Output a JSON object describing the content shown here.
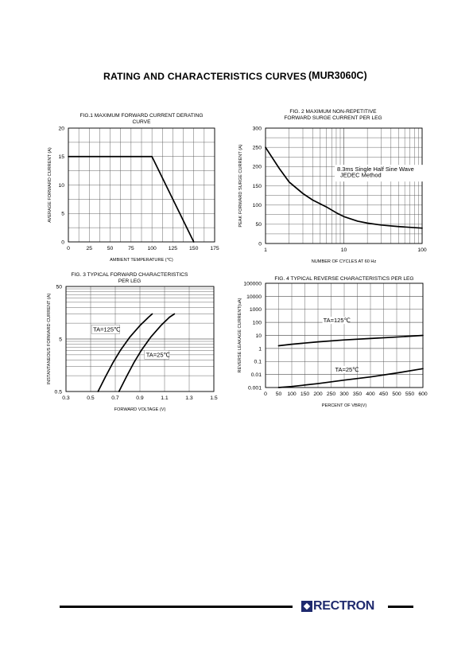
{
  "page": {
    "title": "RATING AND CHARACTERISTICS CURVES",
    "part_number": "(MUR3060C)",
    "logo_text": "RECTRON",
    "logo_icon": "rectron-logo-icon"
  },
  "chart_data": [
    {
      "id": "fig1",
      "type": "line",
      "title": "FIG.1 MAXIMUM FORWARD CURRENT DERATING CURVE",
      "title_lines": [
        "FIG.1 MAXIMUM FORWARD CURRENT DERATING",
        "CURVE"
      ],
      "xlabel": "AMBIENT TEMPERATURE (℃)",
      "ylabel": "AVERAGE FORWARD CURRENT (A)",
      "xlim": [
        0,
        175
      ],
      "ylim": [
        0,
        20
      ],
      "xticks": [
        0,
        25,
        50,
        75,
        100,
        125,
        150,
        175
      ],
      "yticks": [
        0,
        5,
        10,
        15,
        20
      ],
      "xtick_labels": [
        "0",
        "25",
        "50",
        "75",
        "100",
        "125",
        "150",
        "175"
      ],
      "ytick_labels": [
        "0",
        "5",
        "10",
        "15",
        "20"
      ],
      "grid": true,
      "series": [
        {
          "x": [
            0,
            100,
            150
          ],
          "y": [
            15,
            15,
            0
          ]
        }
      ]
    },
    {
      "id": "fig2",
      "type": "line",
      "title": "FIG. 2 MAXIMUM NON-REPETITIVE FORWARD SURGE CURRENT PER LEG",
      "title_lines": [
        "FIG. 2 MAXIMUM NON-REPETITIVE",
        "FORWARD SURGE CURRENT PER LEG"
      ],
      "xlabel": "NUMBER OF CYCLES AT 60 Hz",
      "ylabel": "PEAK FORWARD SURGE CURRENT (A)",
      "xscale": "log",
      "xlim": [
        1,
        100
      ],
      "ylim": [
        0,
        300
      ],
      "xticks": [
        1,
        10,
        100
      ],
      "yticks": [
        0,
        50,
        100,
        150,
        200,
        250,
        300
      ],
      "xtick_labels": [
        "1",
        "10",
        "100"
      ],
      "ytick_labels": [
        "0",
        "50",
        "100",
        "150",
        "200",
        "250",
        "300"
      ],
      "grid": true,
      "annotations": [
        {
          "text": "8.3ms Single Half Sine Wave",
          "x": 8.2,
          "y": 188
        },
        {
          "text": "JEDEC Method",
          "x": 9.0,
          "y": 173
        }
      ],
      "series": [
        {
          "x": [
            1,
            1.5,
            2,
            3,
            4,
            6,
            8,
            10,
            15,
            20,
            30,
            50,
            70,
            100
          ],
          "y": [
            250,
            195,
            160,
            130,
            113,
            95,
            80,
            70,
            58,
            53,
            48,
            44,
            42,
            40
          ]
        }
      ]
    },
    {
      "id": "fig3",
      "type": "line",
      "title": "FIG. 3 TYPICAL FORWARD CHARACTERISTICS PER LEG",
      "title_lines": [
        "FIG. 3 TYPICAL FORWARD CHARACTERISTICS",
        "PER LEG"
      ],
      "xlabel": "FORWARD VOLTAGE (V)",
      "ylabel": "INSTANTANEOUS FORWARD CURRENT (A)",
      "yscale": "log",
      "xlim": [
        0.3,
        1.5
      ],
      "ylim": [
        0.5,
        50
      ],
      "xticks": [
        0.3,
        0.5,
        0.7,
        0.9,
        1.1,
        1.3,
        1.5
      ],
      "yticks": [
        0.5,
        5,
        50
      ],
      "xtick_labels": [
        "0.3",
        "0.5",
        "0.7",
        "0.9",
        "1.1",
        "1.3",
        "1.5"
      ],
      "ytick_labels": [
        "0.5",
        "5",
        "50"
      ],
      "grid": true,
      "annotations": [
        {
          "text": "TA=125℃",
          "x": 0.52,
          "y": 7.0,
          "boxed": true
        },
        {
          "text": "TA=25℃",
          "x": 0.95,
          "y": 2.3,
          "boxed": true
        }
      ],
      "series": [
        {
          "name": "TA=125℃",
          "x": [
            0.56,
            0.62,
            0.68,
            0.74,
            0.82,
            0.9,
            0.97,
            1.0
          ],
          "y": [
            0.5,
            0.95,
            1.75,
            3.0,
            5.5,
            9.0,
            13.0,
            15.0
          ]
        },
        {
          "name": "TA=25℃",
          "x": [
            0.73,
            0.79,
            0.85,
            0.91,
            0.99,
            1.07,
            1.14,
            1.18
          ],
          "y": [
            0.5,
            0.95,
            1.75,
            3.0,
            5.5,
            9.0,
            13.0,
            15.0
          ]
        }
      ]
    },
    {
      "id": "fig4",
      "type": "line",
      "title": "FIG. 4 TYPICAL REVERSE CHARACTERISTICS PER LEG",
      "title_lines": [
        "FIG. 4 TYPICAL REVERSE CHARACTERISTICS PER LEG"
      ],
      "xlabel": "PERCENT OF VBR(V)",
      "ylabel": "REVERSE LEAKAGE CURRENT(uA)",
      "yscale": "log",
      "xlim": [
        0,
        600
      ],
      "ylim": [
        0.001,
        100000
      ],
      "xticks": [
        0,
        50,
        100,
        150,
        200,
        250,
        300,
        350,
        400,
        450,
        500,
        550,
        600
      ],
      "yticks": [
        0.001,
        0.01,
        0.1,
        1,
        10,
        100,
        1000,
        10000,
        100000
      ],
      "xtick_labels": [
        "0",
        "50",
        "100",
        "150",
        "200",
        "250",
        "300",
        "350",
        "400",
        "450",
        "500",
        "550",
        "600"
      ],
      "ytick_labels": [
        "0.001",
        "0.01",
        "0.1",
        "1",
        "10",
        "100",
        "1000",
        "10000",
        "100000"
      ],
      "grid": true,
      "annotations": [
        {
          "text": "TA=125℃",
          "x": 220,
          "y": 100
        },
        {
          "text": "TA=25℃",
          "x": 265,
          "y": 0.017
        }
      ],
      "series": [
        {
          "name": "TA=125℃",
          "x": [
            50,
            100,
            200,
            300,
            400,
            500,
            600
          ],
          "y": [
            1.6,
            2.1,
            3.2,
            4.5,
            5.8,
            7.5,
            10
          ]
        },
        {
          "name": "TA=25℃",
          "x": [
            50,
            100,
            200,
            300,
            400,
            500,
            600
          ],
          "y": [
            0.001,
            0.0012,
            0.002,
            0.0037,
            0.0065,
            0.013,
            0.028
          ]
        }
      ]
    }
  ]
}
